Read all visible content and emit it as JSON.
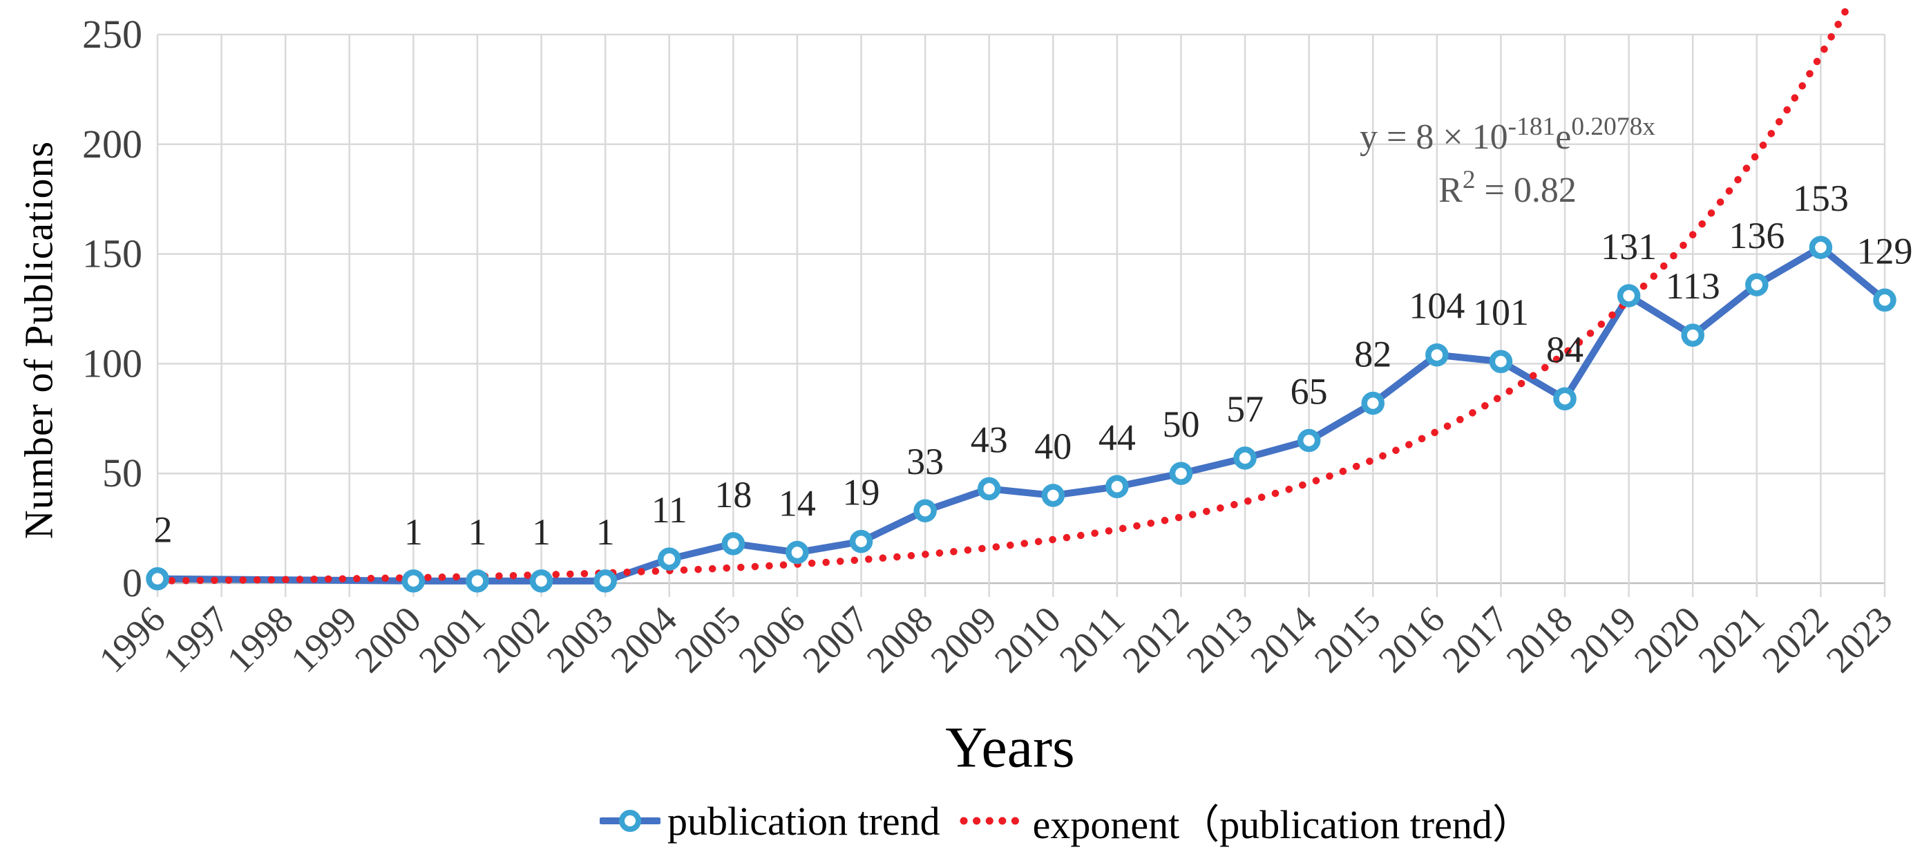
{
  "figure": {
    "equation": {
      "line1_base": "y = 8 × 10",
      "line1_sup1": "-181",
      "line1_mid": "e",
      "line1_sup2": "0.2078x",
      "line2_base": "R",
      "line2_sup": "2",
      "line2_rest": " = 0.82"
    }
  },
  "chart_data": {
    "type": "line",
    "title": "",
    "xlabel": "Years",
    "ylabel": "Number of Publications",
    "ylim": [
      0,
      250
    ],
    "yticks": [
      0,
      50,
      100,
      150,
      200,
      250
    ],
    "grid": true,
    "legend_position": "bottom",
    "x": [
      1996,
      1997,
      1998,
      1999,
      2000,
      2001,
      2002,
      2003,
      2004,
      2005,
      2006,
      2007,
      2008,
      2009,
      2010,
      2011,
      2012,
      2013,
      2014,
      2015,
      2016,
      2017,
      2018,
      2019,
      2020,
      2021,
      2022,
      2023
    ],
    "series": [
      {
        "name": "publication trend",
        "type": "line",
        "color": "#4472C4",
        "marker": "circle-open",
        "marker_color": "#3BA3D4",
        "values": [
          2,
          null,
          null,
          null,
          1,
          1,
          1,
          1,
          11,
          18,
          14,
          19,
          33,
          43,
          40,
          44,
          50,
          57,
          65,
          82,
          104,
          101,
          84,
          131,
          113,
          136,
          153,
          129
        ],
        "data_labels_shown": true
      },
      {
        "name": "exponent（publication trend）",
        "type": "exponential_trendline",
        "style": "dotted",
        "color": "#ED1C24",
        "formula": "y = 8 × 10^-181 e^(0.2078x)",
        "coef_a": 8e-181,
        "coef_b": 0.2078,
        "r_squared": 0.82
      }
    ],
    "colors": {
      "gridline": "#D9D9D9",
      "axis_line": "#BFBFBF",
      "tick_label": "#404040",
      "data_label": "#262626",
      "equation_text": "#595959"
    },
    "label_dx": {
      "1996": 8
    }
  }
}
